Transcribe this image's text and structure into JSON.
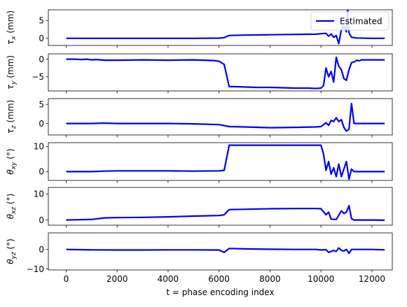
{
  "chart_data": [
    {
      "type": "line",
      "ylabel_sym": "τ",
      "ylabel_sub": "x",
      "ylabel_unit": "(mm)",
      "ylim": [
        -2,
        8
      ],
      "yticks": [
        0,
        5
      ],
      "legend": {
        "label": "Estimated",
        "placement": "top-right"
      },
      "series": [
        {
          "name": "Estimated",
          "color": "#0000ee",
          "points": [
            [
              0,
              0
            ],
            [
              500,
              0
            ],
            [
              1000,
              0
            ],
            [
              1500,
              0
            ],
            [
              2000,
              0
            ],
            [
              3000,
              0
            ],
            [
              4000,
              0
            ],
            [
              5000,
              0
            ],
            [
              6000,
              0.05
            ],
            [
              6200,
              0.2
            ],
            [
              6400,
              0.8
            ],
            [
              7000,
              0.9
            ],
            [
              8000,
              1.0
            ],
            [
              9000,
              1.1
            ],
            [
              9800,
              1.15
            ],
            [
              10000,
              1.3
            ],
            [
              10200,
              1.4
            ],
            [
              10300,
              0.6
            ],
            [
              10400,
              1.2
            ],
            [
              10500,
              0.3
            ],
            [
              10600,
              0.8
            ],
            [
              10700,
              -1.5
            ],
            [
              10800,
              2.5
            ],
            [
              10900,
              3.5
            ],
            [
              11000,
              1.8
            ],
            [
              11050,
              8
            ],
            [
              11100,
              1.5
            ],
            [
              11200,
              0.3
            ],
            [
              11400,
              0.1
            ],
            [
              12000,
              0
            ],
            [
              12500,
              0
            ]
          ]
        }
      ]
    },
    {
      "type": "line",
      "ylabel_sym": "τ",
      "ylabel_sub": "y",
      "ylabel_unit": "(mm)",
      "ylim": [
        -9,
        1.5
      ],
      "yticks": [
        0,
        -5
      ],
      "series": [
        {
          "name": "Estimated",
          "color": "#0000ee",
          "points": [
            [
              0,
              0
            ],
            [
              300,
              0
            ],
            [
              600,
              -0.1
            ],
            [
              800,
              0
            ],
            [
              1000,
              -0.2
            ],
            [
              1200,
              -0.1
            ],
            [
              1500,
              -0.3
            ],
            [
              2000,
              -0.3
            ],
            [
              3000,
              -0.2
            ],
            [
              4000,
              -0.3
            ],
            [
              5000,
              -0.2
            ],
            [
              5800,
              -0.4
            ],
            [
              6000,
              -0.6
            ],
            [
              6200,
              -1.5
            ],
            [
              6400,
              -7.8
            ],
            [
              6600,
              -7.8
            ],
            [
              7000,
              -7.9
            ],
            [
              7500,
              -8.0
            ],
            [
              8000,
              -8.0
            ],
            [
              8500,
              -8.1
            ],
            [
              9000,
              -8.2
            ],
            [
              9500,
              -8.2
            ],
            [
              9800,
              -8.3
            ],
            [
              10000,
              -8.2
            ],
            [
              10100,
              -7.5
            ],
            [
              10200,
              -2.5
            ],
            [
              10300,
              -5.0
            ],
            [
              10400,
              -3.5
            ],
            [
              10500,
              -6.5
            ],
            [
              10600,
              0.5
            ],
            [
              10700,
              -2.0
            ],
            [
              10800,
              -3.0
            ],
            [
              10900,
              -5.5
            ],
            [
              11000,
              -6.0
            ],
            [
              11100,
              -3.0
            ],
            [
              11200,
              -1.0
            ],
            [
              11300,
              -0.8
            ],
            [
              11400,
              -0.3
            ],
            [
              11500,
              -0.5
            ],
            [
              11600,
              -0.2
            ],
            [
              12000,
              -0.2
            ],
            [
              12500,
              -0.2
            ]
          ]
        }
      ]
    },
    {
      "type": "line",
      "ylabel_sym": "τ",
      "ylabel_sub": "z",
      "ylabel_unit": "(mm)",
      "ylim": [
        -3,
        6.5
      ],
      "yticks": [
        0,
        5
      ],
      "series": [
        {
          "name": "Estimated",
          "color": "#0000ee",
          "points": [
            [
              0,
              0
            ],
            [
              1000,
              0
            ],
            [
              1500,
              0.1
            ],
            [
              2000,
              0
            ],
            [
              3000,
              0
            ],
            [
              4000,
              0
            ],
            [
              5000,
              -0.1
            ],
            [
              6000,
              -0.3
            ],
            [
              6400,
              -0.8
            ],
            [
              7000,
              -0.9
            ],
            [
              8000,
              -1.1
            ],
            [
              9000,
              -1.0
            ],
            [
              9800,
              -0.9
            ],
            [
              10000,
              -0.8
            ],
            [
              10200,
              0.2
            ],
            [
              10300,
              -0.5
            ],
            [
              10400,
              0.8
            ],
            [
              10500,
              0.5
            ],
            [
              10600,
              1.5
            ],
            [
              10700,
              0.5
            ],
            [
              10800,
              1.0
            ],
            [
              10900,
              -1.0
            ],
            [
              11000,
              -2.0
            ],
            [
              11100,
              -1.5
            ],
            [
              11200,
              5.2
            ],
            [
              11300,
              0
            ],
            [
              11500,
              0
            ],
            [
              12000,
              0
            ],
            [
              12500,
              0
            ]
          ]
        }
      ]
    },
    {
      "type": "line",
      "ylabel_sym": "θ",
      "ylabel_sub": "xy",
      "ylabel_unit": "(°)",
      "ylim": [
        -3.5,
        11.5
      ],
      "yticks": [
        0,
        10
      ],
      "series": [
        {
          "name": "Estimated",
          "color": "#0000ee",
          "points": [
            [
              0,
              0
            ],
            [
              1000,
              0
            ],
            [
              1500,
              0.2
            ],
            [
              2000,
              0.3
            ],
            [
              3000,
              0.3
            ],
            [
              4000,
              0.3
            ],
            [
              5000,
              0.2
            ],
            [
              6000,
              0.3
            ],
            [
              6200,
              0.5
            ],
            [
              6400,
              10.5
            ],
            [
              7000,
              10.5
            ],
            [
              8000,
              10.5
            ],
            [
              9000,
              10.5
            ],
            [
              9800,
              10.5
            ],
            [
              10000,
              10.5
            ],
            [
              10100,
              7.0
            ],
            [
              10200,
              0.5
            ],
            [
              10300,
              4.0
            ],
            [
              10400,
              -1.0
            ],
            [
              10500,
              1.5
            ],
            [
              10600,
              -2.0
            ],
            [
              10700,
              3.0
            ],
            [
              10800,
              -2.0
            ],
            [
              10900,
              1.0
            ],
            [
              11000,
              4.0
            ],
            [
              11100,
              -3.0
            ],
            [
              11200,
              1.0
            ],
            [
              11300,
              0
            ],
            [
              11500,
              0
            ],
            [
              12000,
              0
            ],
            [
              12500,
              0
            ]
          ]
        }
      ]
    },
    {
      "type": "line",
      "ylabel_sym": "θ",
      "ylabel_sub": "xz",
      "ylabel_unit": "(°)",
      "ylim": [
        -2,
        12.5
      ],
      "yticks": [
        0,
        10
      ],
      "series": [
        {
          "name": "Estimated",
          "color": "#0000ee",
          "points": [
            [
              0,
              0
            ],
            [
              500,
              0.1
            ],
            [
              1000,
              0.2
            ],
            [
              1500,
              0.8
            ],
            [
              2000,
              0.9
            ],
            [
              3000,
              1.0
            ],
            [
              4000,
              1.2
            ],
            [
              5000,
              1.5
            ],
            [
              6000,
              1.7
            ],
            [
              6200,
              2.0
            ],
            [
              6400,
              4.0
            ],
            [
              7000,
              4.1
            ],
            [
              8000,
              4.3
            ],
            [
              9000,
              4.4
            ],
            [
              9800,
              4.4
            ],
            [
              10000,
              4.3
            ],
            [
              10200,
              2.0
            ],
            [
              10300,
              3.0
            ],
            [
              10400,
              0.3
            ],
            [
              10600,
              0.2
            ],
            [
              10800,
              3.5
            ],
            [
              10900,
              2.5
            ],
            [
              11000,
              3.0
            ],
            [
              11100,
              5.5
            ],
            [
              11200,
              0.5
            ],
            [
              11300,
              0
            ],
            [
              12000,
              0
            ],
            [
              12500,
              -0.1
            ]
          ]
        }
      ]
    },
    {
      "type": "line",
      "ylabel_sym": "θ",
      "ylabel_sub": "yz",
      "ylabel_unit": "(°)",
      "ylim": [
        -10.5,
        8.5
      ],
      "yticks": [
        0,
        -10
      ],
      "series": [
        {
          "name": "Estimated",
          "color": "#0000ee",
          "points": [
            [
              0,
              0
            ],
            [
              1000,
              -0.2
            ],
            [
              2000,
              -0.3
            ],
            [
              3000,
              -0.3
            ],
            [
              4000,
              -0.2
            ],
            [
              5000,
              -0.2
            ],
            [
              6000,
              -0.3
            ],
            [
              6200,
              -1.5
            ],
            [
              6400,
              0.5
            ],
            [
              7000,
              0.3
            ],
            [
              8000,
              0.1
            ],
            [
              9000,
              0
            ],
            [
              9800,
              0
            ],
            [
              10000,
              -0.3
            ],
            [
              10200,
              -0.1
            ],
            [
              10300,
              -1.5
            ],
            [
              10500,
              -0.5
            ],
            [
              10600,
              -1.0
            ],
            [
              10700,
              0.8
            ],
            [
              10800,
              -0.5
            ],
            [
              10900,
              -0.8
            ],
            [
              11000,
              0
            ],
            [
              11100,
              -2.0
            ],
            [
              11200,
              0
            ],
            [
              12000,
              0
            ],
            [
              12500,
              -0.2
            ]
          ]
        }
      ]
    }
  ],
  "xaxis": {
    "label": "t = phase encoding index",
    "xlim": [
      -700,
      12800
    ],
    "ticks": [
      0,
      2000,
      4000,
      6000,
      8000,
      10000,
      12000
    ]
  }
}
